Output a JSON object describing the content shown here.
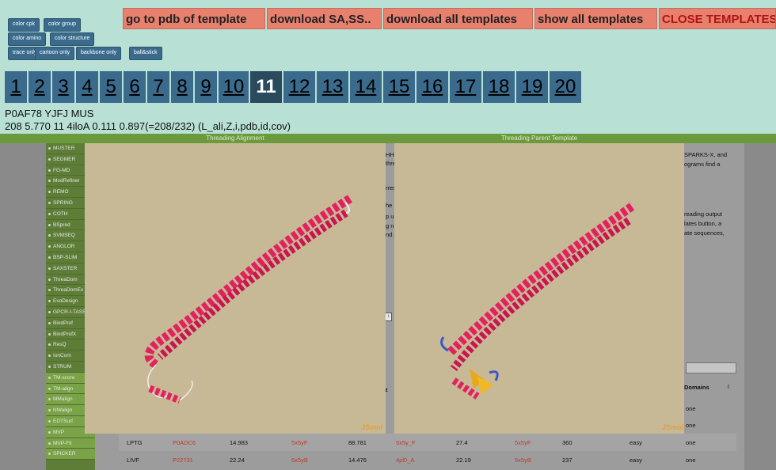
{
  "style_buttons": [
    "color cpk",
    "color group",
    "color amino",
    "color structure",
    "trace only",
    "cartoon only",
    "backbone only",
    "ball&stick"
  ],
  "action_buttons": [
    "go to pdb of template",
    "download SA,SS..",
    "download all templates",
    "show all templates",
    "CLOSE TEMPLATES"
  ],
  "template_numbers": [
    "1",
    "2",
    "3",
    "4",
    "5",
    "6",
    "7",
    "8",
    "9",
    "10",
    "11",
    "12",
    "13",
    "14",
    "15",
    "16",
    "17",
    "18",
    "19",
    "20"
  ],
  "active_template": "11",
  "info": {
    "line1": "P0AF78 YJFJ MUS",
    "line2": "208 5.770 11 4iloA 0.111 0.897(=208/232) (L_ali,Z,i,pdb,id,cov)"
  },
  "panels": {
    "left_title": "Threading Alignment",
    "right_title": "Threading Parent Template",
    "jsmol_label": "JSmol"
  },
  "sidebar_items": [
    "MUSTER",
    "SEGMER",
    "FG-MD",
    "ModRefiner",
    "REMO",
    "SPRING",
    "COTH",
    "BSpred",
    "SVMSEQ",
    "ANGLOR",
    "BSP-SLIM",
    "SAXSTER",
    "ThreaDom",
    "ThreaDomEx",
    "EvoDesign",
    "GPCR-I-TASSER",
    "BindProf",
    "BindProfX",
    "ResQ",
    "IonCom",
    "STRUM",
    "TM-score",
    "TM-align",
    "MMalign",
    "NWalign",
    "EDTSurf",
    "MVP",
    "MVP-Fit",
    "SPICKER"
  ],
  "background_text": {
    "right_lines": [
      "SPARKS-X, and",
      "ograms find a",
      "reading output",
      "lates button, a",
      "ate sequences,"
    ],
    "mid_fragments": [
      "HH",
      "thre",
      "rres",
      "he",
      "p u",
      "g n",
      "nd p"
    ],
    "z_header": "z",
    "domains_header": "Domains",
    "domain_values": [
      "one",
      "one"
    ]
  },
  "table_rows": [
    [
      "LPTG",
      "P0ADC6",
      "14.983",
      "5x5yF",
      "88.781",
      "5x5y_F",
      "27.4",
      "5x5yF",
      "360",
      "easy",
      "one"
    ],
    [
      "LIVF",
      "P22731",
      "22.24",
      "5x5yB",
      "14.476",
      "4pl0_A",
      "22.19",
      "5x5yB",
      "237",
      "easy",
      "one"
    ]
  ]
}
